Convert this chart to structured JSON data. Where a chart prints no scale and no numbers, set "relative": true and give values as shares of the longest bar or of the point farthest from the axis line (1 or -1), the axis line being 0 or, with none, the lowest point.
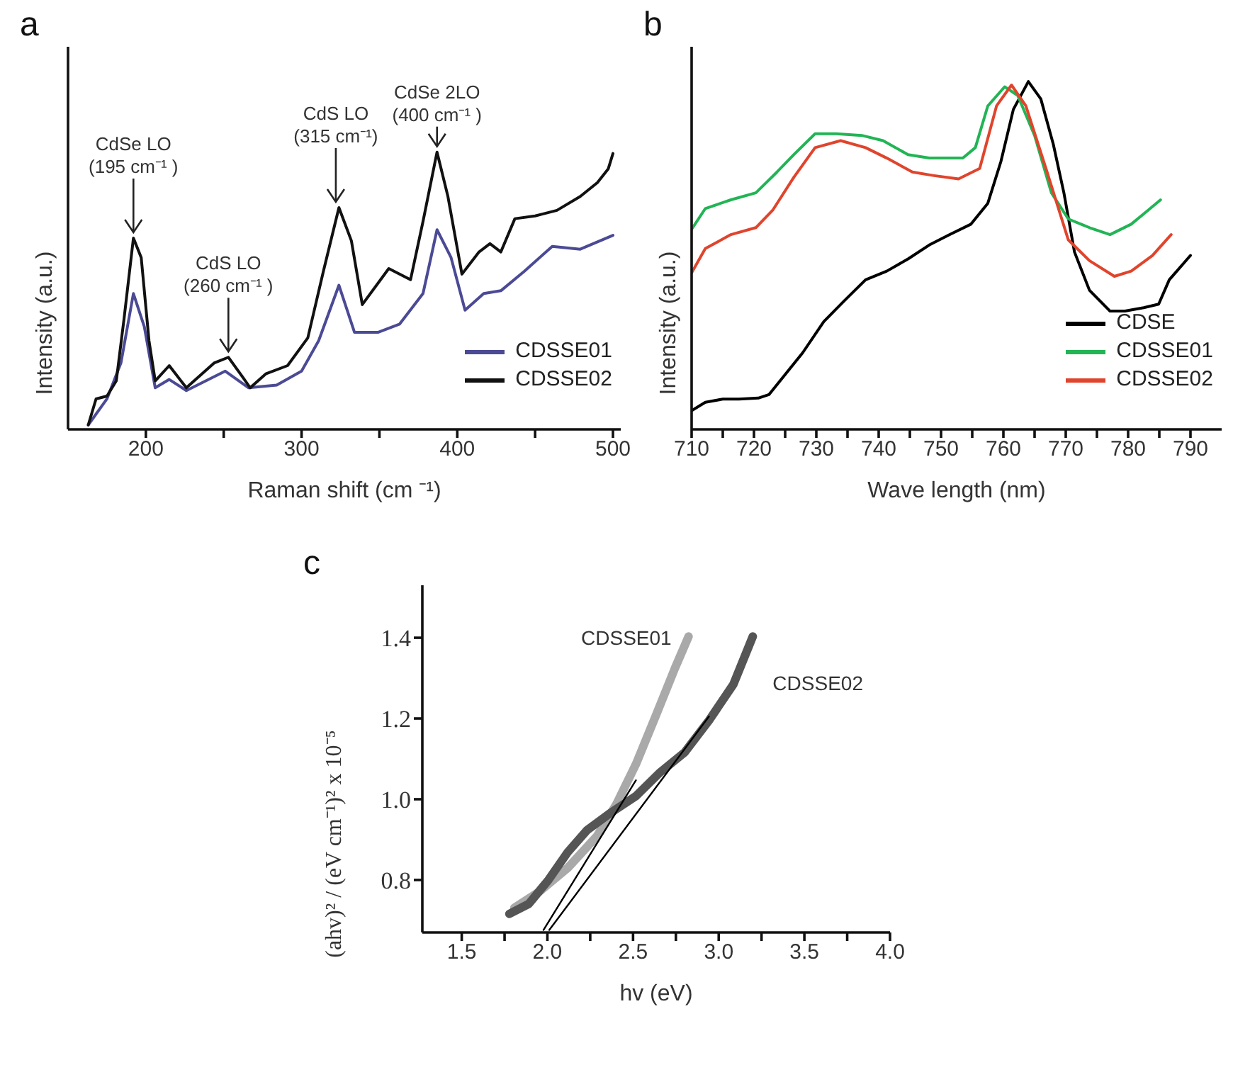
{
  "chart_data": [
    {
      "type": "line",
      "title": "a",
      "xlabel": "Raman shift (cm ⁻¹)",
      "ylabel": "Intensity (a.u.)",
      "relative": true,
      "xlim": [
        150,
        505
      ],
      "xticks": [
        200,
        {
          "value": 250,
          "label": null
        },
        300,
        {
          "value": 350,
          "label": null
        },
        400,
        {
          "value": 450,
          "label": null
        },
        500
      ],
      "legend": "bottom right",
      "marker": "none",
      "line_style": "solid",
      "series": [
        {
          "name": "CDSSE01",
          "color": "#4b4a95",
          "x": [
            163,
            175,
            184,
            192,
            199,
            206,
            215,
            226,
            251,
            266,
            284,
            300,
            311,
            324,
            334,
            349,
            363,
            378,
            387,
            396,
            405,
            417,
            428,
            443,
            461,
            479,
            500
          ],
          "values": [
            0.016,
            0.11,
            0.24,
            0.49,
            0.37,
            0.15,
            0.18,
            0.14,
            0.21,
            0.15,
            0.16,
            0.21,
            0.32,
            0.52,
            0.35,
            0.35,
            0.38,
            0.49,
            0.72,
            0.62,
            0.43,
            0.49,
            0.5,
            0.57,
            0.66,
            0.65,
            0.7
          ]
        },
        {
          "name": "CDSSE02",
          "color": "#111111",
          "x": [
            163,
            168,
            175,
            181,
            186,
            192,
            197,
            202,
            206,
            215,
            226,
            244,
            253,
            262,
            267,
            277,
            291,
            304,
            314,
            324,
            332,
            339,
            356,
            370,
            378,
            387,
            394,
            403,
            414,
            421,
            428,
            437,
            450,
            464,
            479,
            490,
            497,
            500
          ],
          "values": [
            0.016,
            0.11,
            0.12,
            0.175,
            0.4,
            0.69,
            0.62,
            0.32,
            0.175,
            0.23,
            0.15,
            0.24,
            0.26,
            0.19,
            0.15,
            0.2,
            0.23,
            0.33,
            0.57,
            0.8,
            0.68,
            0.45,
            0.58,
            0.54,
            0.75,
            1.0,
            0.84,
            0.56,
            0.64,
            0.67,
            0.64,
            0.76,
            0.77,
            0.79,
            0.84,
            0.89,
            0.94,
            0.995
          ]
        }
      ],
      "annotations": [
        {
          "text": "CdSe LO\n(195 cm⁻¹ )",
          "x": 192,
          "y": 0.69
        },
        {
          "text": "CdS LO\n(260 cm⁻¹ )",
          "x": 253,
          "y": 0.26
        },
        {
          "text": "CdS LO\n(315 cm⁻¹)",
          "x": 322,
          "y": 0.8
        },
        {
          "text": "CdSe 2LO\n(400 cm⁻¹ )",
          "x": 387,
          "y": 1.0
        }
      ]
    },
    {
      "type": "line",
      "title": "b",
      "xlabel": "Wave length (nm)",
      "ylabel": "Intensity (a.u.)",
      "relative": true,
      "xlim": [
        710,
        795
      ],
      "xticks": [
        710,
        {
          "value": 715,
          "label": null
        },
        720,
        {
          "value": 725,
          "label": null
        },
        730,
        {
          "value": 735,
          "label": null
        },
        740,
        {
          "value": 745,
          "label": null
        },
        750,
        {
          "value": 755,
          "label": null
        },
        760,
        {
          "value": 765,
          "label": null
        },
        770,
        {
          "value": 775,
          "label": null
        },
        780,
        {
          "value": 785,
          "label": null
        },
        790
      ],
      "legend": "bottom right",
      "marker": "none",
      "line_style": "solid",
      "series": [
        {
          "name": "CDSE",
          "color": "#000000",
          "x": [
            710,
            712.2,
            715,
            717.6,
            720.7,
            722.4,
            725.1,
            727.8,
            731.2,
            734.5,
            737.9,
            741.3,
            744.7,
            748.1,
            751.4,
            754.8,
            757.5,
            759.6,
            761.6,
            764,
            766,
            768,
            769.7,
            771.4,
            773.8,
            777.1,
            779.5,
            782.5,
            784.9,
            786.6,
            790
          ],
          "values": [
            0.054,
            0.078,
            0.087,
            0.087,
            0.09,
            0.1,
            0.16,
            0.22,
            0.31,
            0.37,
            0.43,
            0.455,
            0.49,
            0.53,
            0.56,
            0.59,
            0.65,
            0.77,
            0.92,
            1.0,
            0.95,
            0.82,
            0.68,
            0.51,
            0.4,
            0.34,
            0.34,
            0.35,
            0.36,
            0.43,
            0.5
          ]
        },
        {
          "name": "CDSSE01",
          "color": "#22b455",
          "x": [
            710,
            712.2,
            716.3,
            720.3,
            723.7,
            726.4,
            729.8,
            733.2,
            737.3,
            740.7,
            744.7,
            748.1,
            753.5,
            755.5,
            757.5,
            760.2,
            762.3,
            765,
            767.7,
            770.4,
            773.8,
            777.1,
            780.5,
            783.2,
            785.2
          ],
          "values": [
            0.575,
            0.635,
            0.66,
            0.68,
            0.74,
            0.79,
            0.85,
            0.85,
            0.845,
            0.83,
            0.79,
            0.78,
            0.78,
            0.81,
            0.93,
            0.985,
            0.96,
            0.845,
            0.68,
            0.605,
            0.58,
            0.56,
            0.59,
            0.63,
            0.66
          ]
        },
        {
          "name": "CDSSE02",
          "color": "#e0442c",
          "x": [
            710,
            712.2,
            716.3,
            720.3,
            723,
            726.4,
            729.8,
            733.9,
            737.9,
            741.3,
            745.4,
            748.7,
            752.8,
            756.2,
            758.9,
            761.3,
            763.6,
            767,
            770.4,
            773.8,
            777.8,
            780.5,
            783.9,
            786.9
          ],
          "values": [
            0.45,
            0.52,
            0.56,
            0.58,
            0.63,
            0.725,
            0.81,
            0.83,
            0.81,
            0.78,
            0.74,
            0.73,
            0.72,
            0.75,
            0.93,
            0.99,
            0.93,
            0.74,
            0.545,
            0.485,
            0.44,
            0.455,
            0.5,
            0.56
          ]
        }
      ]
    },
    {
      "type": "line",
      "title": "c",
      "xlabel": "hv (eV)",
      "ylabel": "(ahv)² / (eV cm⁻¹)² x 10⁻⁵",
      "xlim": [
        1.27,
        4.0
      ],
      "ylim": [
        0.67,
        1.53
      ],
      "xticks": [
        1.5,
        {
          "value": 1.75,
          "label": null
        },
        {
          "value": 2.0,
          "label": "2.0"
        },
        {
          "value": 2.25,
          "label": null
        },
        2.5,
        {
          "value": 2.75,
          "label": null
        },
        {
          "value": 3.0,
          "label": "3.0"
        },
        {
          "value": 3.25,
          "label": null
        },
        3.5,
        {
          "value": 3.75,
          "label": null
        },
        {
          "value": 4.0,
          "label": "4.0"
        }
      ],
      "yticks": [
        0.8,
        {
          "value": 1.0,
          "label": "1.0"
        },
        1.2,
        1.4
      ],
      "legend": false,
      "marker": "none",
      "line_style": "solid",
      "series": [
        {
          "name": "CDSSE01",
          "color": "#a9a9a9",
          "x": [
            1.807,
            1.949,
            2.119,
            2.29,
            2.403,
            2.517,
            2.631,
            2.744,
            2.824
          ],
          "values": [
            0.731,
            0.77,
            0.83,
            0.909,
            0.988,
            1.087,
            1.205,
            1.324,
            1.403
          ]
        },
        {
          "name": "CDSSE02",
          "color": "#555555",
          "x": [
            1.778,
            1.892,
            2.006,
            2.119,
            2.233,
            2.375,
            2.517,
            2.659,
            2.801,
            2.943,
            3.085,
            3.199
          ],
          "values": [
            0.716,
            0.741,
            0.8,
            0.869,
            0.924,
            0.968,
            1.008,
            1.067,
            1.116,
            1.195,
            1.284,
            1.403
          ]
        },
        {
          "type": "line",
          "color": "#000000",
          "x": [
            1.977,
            2.517
          ],
          "values": [
            0.676,
            1.047
          ]
        },
        {
          "type": "line",
          "color": "#000000",
          "x": [
            2.011,
            2.943
          ],
          "values": [
            0.676,
            1.205
          ]
        }
      ]
    }
  ]
}
